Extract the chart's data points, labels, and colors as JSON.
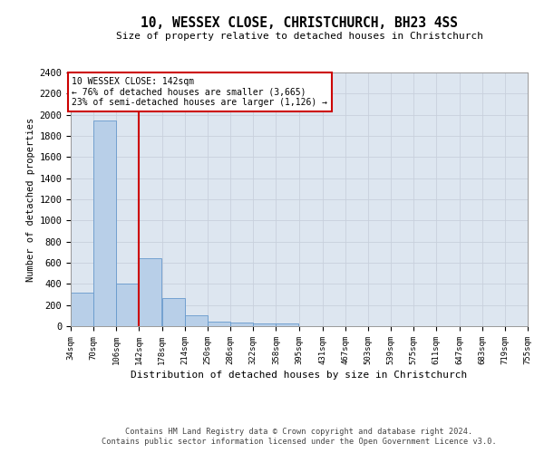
{
  "title": "10, WESSEX CLOSE, CHRISTCHURCH, BH23 4SS",
  "subtitle": "Size of property relative to detached houses in Christchurch",
  "xlabel": "Distribution of detached houses by size in Christchurch",
  "ylabel": "Number of detached properties",
  "footer_line1": "Contains HM Land Registry data © Crown copyright and database right 2024.",
  "footer_line2": "Contains public sector information licensed under the Open Government Licence v3.0.",
  "bar_color": "#b8cfe8",
  "bar_edge_color": "#6699cc",
  "vline_color": "#cc0000",
  "vline_x": 142,
  "annotation_line1": "10 WESSEX CLOSE: 142sqm",
  "annotation_line2": "← 76% of detached houses are smaller (3,665)",
  "annotation_line3": "23% of semi-detached houses are larger (1,126) →",
  "annotation_box_color": "#cc0000",
  "bin_edges": [
    34,
    70,
    106,
    142,
    178,
    214,
    250,
    286,
    322,
    358,
    395,
    431,
    467,
    503,
    539,
    575,
    611,
    647,
    683,
    719,
    755
  ],
  "bar_heights": [
    320,
    1950,
    400,
    640,
    270,
    100,
    42,
    37,
    25,
    22,
    0,
    0,
    0,
    0,
    0,
    0,
    0,
    0,
    0,
    0
  ],
  "ylim": [
    0,
    2400
  ],
  "yticks": [
    0,
    200,
    400,
    600,
    800,
    1000,
    1200,
    1400,
    1600,
    1800,
    2000,
    2200,
    2400
  ],
  "grid_color": "#c8d0dc",
  "bg_color": "#dde6f0"
}
